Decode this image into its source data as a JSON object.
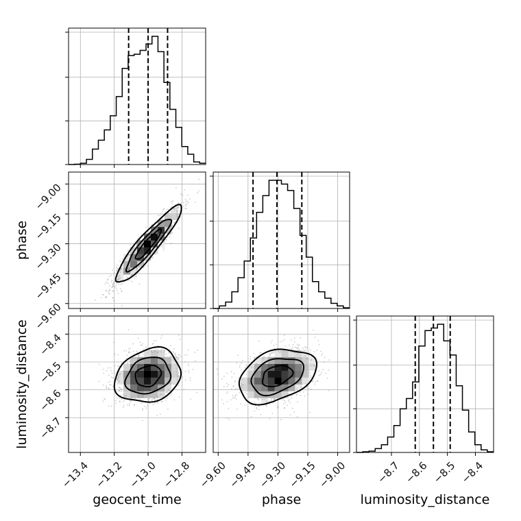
{
  "chart_data": {
    "type": "corner",
    "parameters": [
      "geocent_time",
      "phase",
      "luminosity_distance"
    ],
    "axis_labels": {
      "x": [
        "geocent_time",
        "phase",
        "luminosity_distance"
      ],
      "y_row1": "phase",
      "y_row2": "luminosity_distance"
    },
    "ranges": {
      "geocent_time": [
        -13.47,
        -12.66
      ],
      "phase": [
        -9.625,
        -8.94
      ],
      "luminosity_distance": [
        -8.825,
        -8.335
      ]
    },
    "ticks": {
      "geocent_time": {
        "values": [
          -13.4,
          -13.2,
          -13.0,
          -12.8
        ],
        "labels": [
          "−13.4",
          "−13.2",
          "−13.0",
          "−12.8"
        ]
      },
      "phase": {
        "values": [
          -9.6,
          -9.45,
          -9.3,
          -9.15,
          -9.0
        ],
        "labels": [
          "−9.60",
          "−9.45",
          "−9.30",
          "−9.15",
          "−9.00"
        ]
      },
      "luminosity_distance": {
        "values": [
          -8.7,
          -8.6,
          -8.5,
          -8.4
        ],
        "labels": [
          "−8.7",
          "−8.6",
          "−8.5",
          "−8.4"
        ]
      }
    },
    "quantiles": {
      "geocent_time": [
        -13.115,
        -13.0,
        -12.885
      ],
      "phase": [
        -9.425,
        -9.305,
        -9.18
      ],
      "luminosity_distance": [
        -8.615,
        -8.55,
        -8.49
      ]
    },
    "histograms": {
      "geocent_time": [
        0,
        0.003,
        0.01,
        0.04,
        0.12,
        0.19,
        0.27,
        0.38,
        0.53,
        0.75,
        0.85,
        0.86,
        0.89,
        0.94,
        1.0,
        0.88,
        0.64,
        0.43,
        0.29,
        0.14,
        0.08,
        0.02,
        0.01
      ],
      "phase": [
        0,
        0.02,
        0.05,
        0.13,
        0.24,
        0.37,
        0.55,
        0.75,
        0.88,
        1.0,
        1.0,
        0.97,
        0.92,
        0.78,
        0.57,
        0.4,
        0.21,
        0.13,
        0.08,
        0.04,
        0.02,
        0.005
      ],
      "luminosity_distance": [
        0,
        0.005,
        0.01,
        0.03,
        0.06,
        0.12,
        0.21,
        0.34,
        0.42,
        0.55,
        0.83,
        0.95,
        0.97,
        1.0,
        0.87,
        0.76,
        0.52,
        0.33,
        0.16,
        0.06,
        0.02,
        0.005
      ]
    },
    "posterior": {
      "means": {
        "geocent_time": -13.0,
        "phase": -9.305,
        "luminosity_distance": -8.55
      },
      "std": {
        "geocent_time": 0.1,
        "phase": 0.1,
        "luminosity_distance": 0.05
      },
      "correlations": {
        "phase|geocent_time": 0.92,
        "luminosity_distance|geocent_time": 0.2,
        "luminosity_distance|phase": 0.35
      }
    },
    "grid": true,
    "colors": {
      "line": "#000000",
      "grid": "#b0b0b0",
      "scatter": "#8c8c8c",
      "frame": "#000000"
    }
  }
}
